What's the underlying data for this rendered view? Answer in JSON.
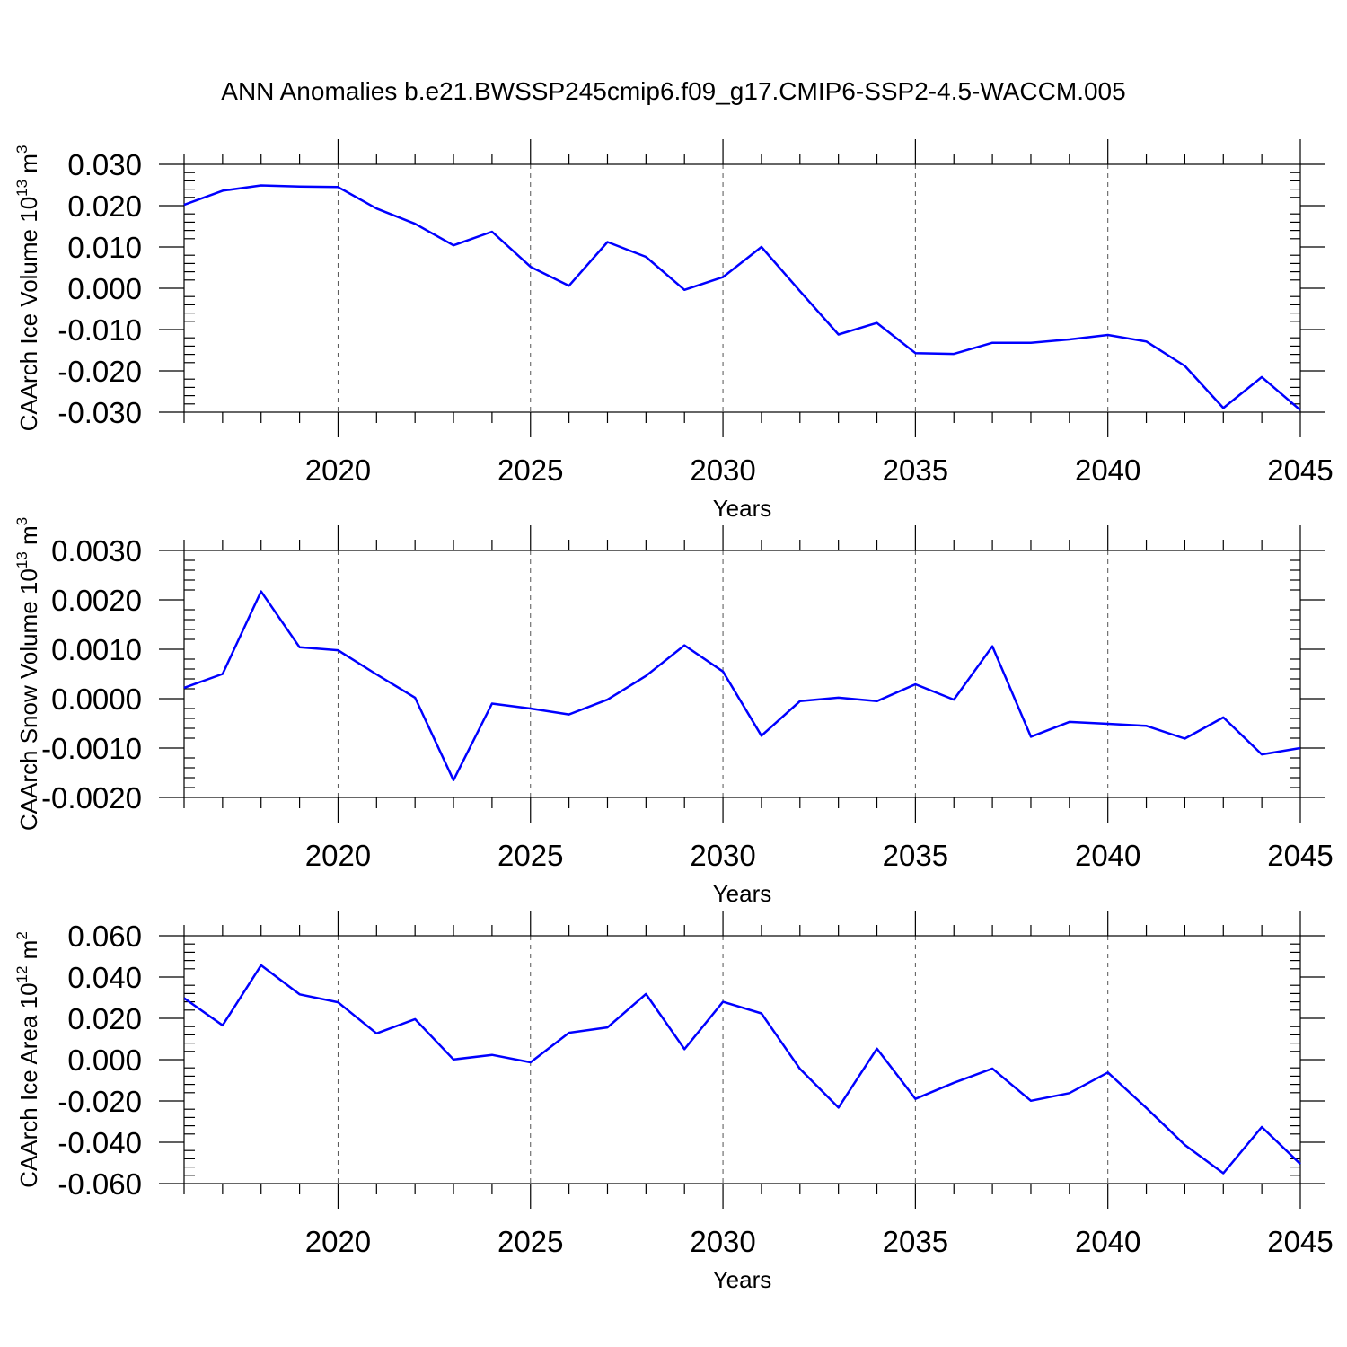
{
  "title": "ANN Anomalies b.e21.BWSSP245cmip6.f09_g17.CMIP6-SSP2-4.5-WACCM.005",
  "colors": {
    "series": "#0000ff",
    "axis": "#000000",
    "grid": "#555555"
  },
  "chart_data": [
    {
      "type": "line",
      "ylabel": "CAArch Ice Volume 10",
      "ylabel_exp": "13",
      "ylabel_unit": " m",
      "ylabel_unit_exp": "3",
      "xlabel": "Years",
      "xlim": [
        2016,
        2045
      ],
      "ylim": [
        -0.03,
        0.03
      ],
      "ytick_values": [
        -0.03,
        -0.02,
        -0.01,
        0.0,
        0.01,
        0.02,
        0.03
      ],
      "ytick_labels": [
        "-0.030",
        "-0.020",
        "-0.010",
        "0.000",
        "0.010",
        "0.020",
        "0.030"
      ],
      "xtick_values": [
        2020,
        2025,
        2030,
        2035,
        2040,
        2045
      ],
      "xtick_labels": [
        "2020",
        "2025",
        "2030",
        "2035",
        "2040",
        "2045"
      ],
      "grid": "dashed vertical at major x ticks",
      "x": [
        2016,
        2017,
        2018,
        2019,
        2020,
        2021,
        2022,
        2023,
        2024,
        2025,
        2026,
        2027,
        2028,
        2029,
        2030,
        2031,
        2032,
        2033,
        2034,
        2035,
        2036,
        2037,
        2038,
        2039,
        2040,
        2041,
        2042,
        2043,
        2044,
        2045
      ],
      "values": [
        0.0202,
        0.0236,
        0.0249,
        0.0246,
        0.0245,
        0.0193,
        0.0156,
        0.0104,
        0.0137,
        0.0052,
        0.0006,
        0.0112,
        0.0076,
        -0.0004,
        0.0027,
        0.01,
        -0.0007,
        -0.0112,
        -0.0084,
        -0.0157,
        -0.0159,
        -0.0132,
        -0.0132,
        -0.0124,
        -0.0113,
        -0.0129,
        -0.0188,
        -0.029,
        -0.0215,
        -0.0295
      ]
    },
    {
      "type": "line",
      "ylabel": "CAArch Snow Volume 10",
      "ylabel_exp": "13",
      "ylabel_unit": " m",
      "ylabel_unit_exp": "3",
      "xlabel": "Years",
      "xlim": [
        2016,
        2045
      ],
      "ylim": [
        -0.002,
        0.003
      ],
      "ytick_values": [
        -0.002,
        -0.001,
        0.0,
        0.001,
        0.002,
        0.003
      ],
      "ytick_labels": [
        "-0.0020",
        "-0.0010",
        "0.0000",
        "0.0010",
        "0.0020",
        "0.0030"
      ],
      "xtick_values": [
        2020,
        2025,
        2030,
        2035,
        2040,
        2045
      ],
      "xtick_labels": [
        "2020",
        "2025",
        "2030",
        "2035",
        "2040",
        "2045"
      ],
      "grid": "dashed vertical at major x ticks",
      "x": [
        2016,
        2017,
        2018,
        2019,
        2020,
        2021,
        2022,
        2023,
        2024,
        2025,
        2026,
        2027,
        2028,
        2029,
        2030,
        2031,
        2032,
        2033,
        2034,
        2035,
        2036,
        2037,
        2038,
        2039,
        2040,
        2041,
        2042,
        2043,
        2044,
        2045
      ],
      "values": [
        0.00022,
        0.0005,
        0.00217,
        0.00104,
        0.00098,
        0.00049,
        2e-05,
        -0.00165,
        -0.0001,
        -0.0002,
        -0.00032,
        -2e-05,
        0.00046,
        0.00108,
        0.00055,
        -0.00075,
        -5e-05,
        2e-05,
        -5e-05,
        0.00029,
        -2e-05,
        0.00106,
        -0.00077,
        -0.00047,
        -0.00051,
        -0.00055,
        -0.00081,
        -0.00038,
        -0.00113,
        -0.001
      ]
    },
    {
      "type": "line",
      "ylabel": "CAArch Ice Area 10",
      "ylabel_exp": "12",
      "ylabel_unit": " m",
      "ylabel_unit_exp": "2",
      "xlabel": "Years",
      "xlim": [
        2016,
        2045
      ],
      "ylim": [
        -0.06,
        0.06
      ],
      "ytick_values": [
        -0.06,
        -0.04,
        -0.02,
        0.0,
        0.02,
        0.04,
        0.06
      ],
      "ytick_labels": [
        "-0.060",
        "-0.040",
        "-0.020",
        "0.000",
        "0.020",
        "0.040",
        "0.060"
      ],
      "xtick_values": [
        2020,
        2025,
        2030,
        2035,
        2040,
        2045
      ],
      "xtick_labels": [
        "2020",
        "2025",
        "2030",
        "2035",
        "2040",
        "2045"
      ],
      "grid": "dashed vertical at major x ticks",
      "x": [
        2016,
        2017,
        2018,
        2019,
        2020,
        2021,
        2022,
        2023,
        2024,
        2025,
        2026,
        2027,
        2028,
        2029,
        2030,
        2031,
        2032,
        2033,
        2034,
        2035,
        2036,
        2037,
        2038,
        2039,
        2040,
        2041,
        2042,
        2043,
        2044,
        2045
      ],
      "values": [
        0.0298,
        0.0166,
        0.0457,
        0.0316,
        0.0278,
        0.0127,
        0.0196,
        0.0001,
        0.0023,
        -0.0013,
        0.013,
        0.0156,
        0.0318,
        0.0051,
        0.028,
        0.0224,
        -0.0045,
        -0.0232,
        0.0053,
        -0.019,
        -0.0112,
        -0.0043,
        -0.0199,
        -0.0162,
        -0.0062,
        -0.0234,
        -0.0413,
        -0.055,
        -0.0326,
        -0.0505
      ]
    }
  ]
}
